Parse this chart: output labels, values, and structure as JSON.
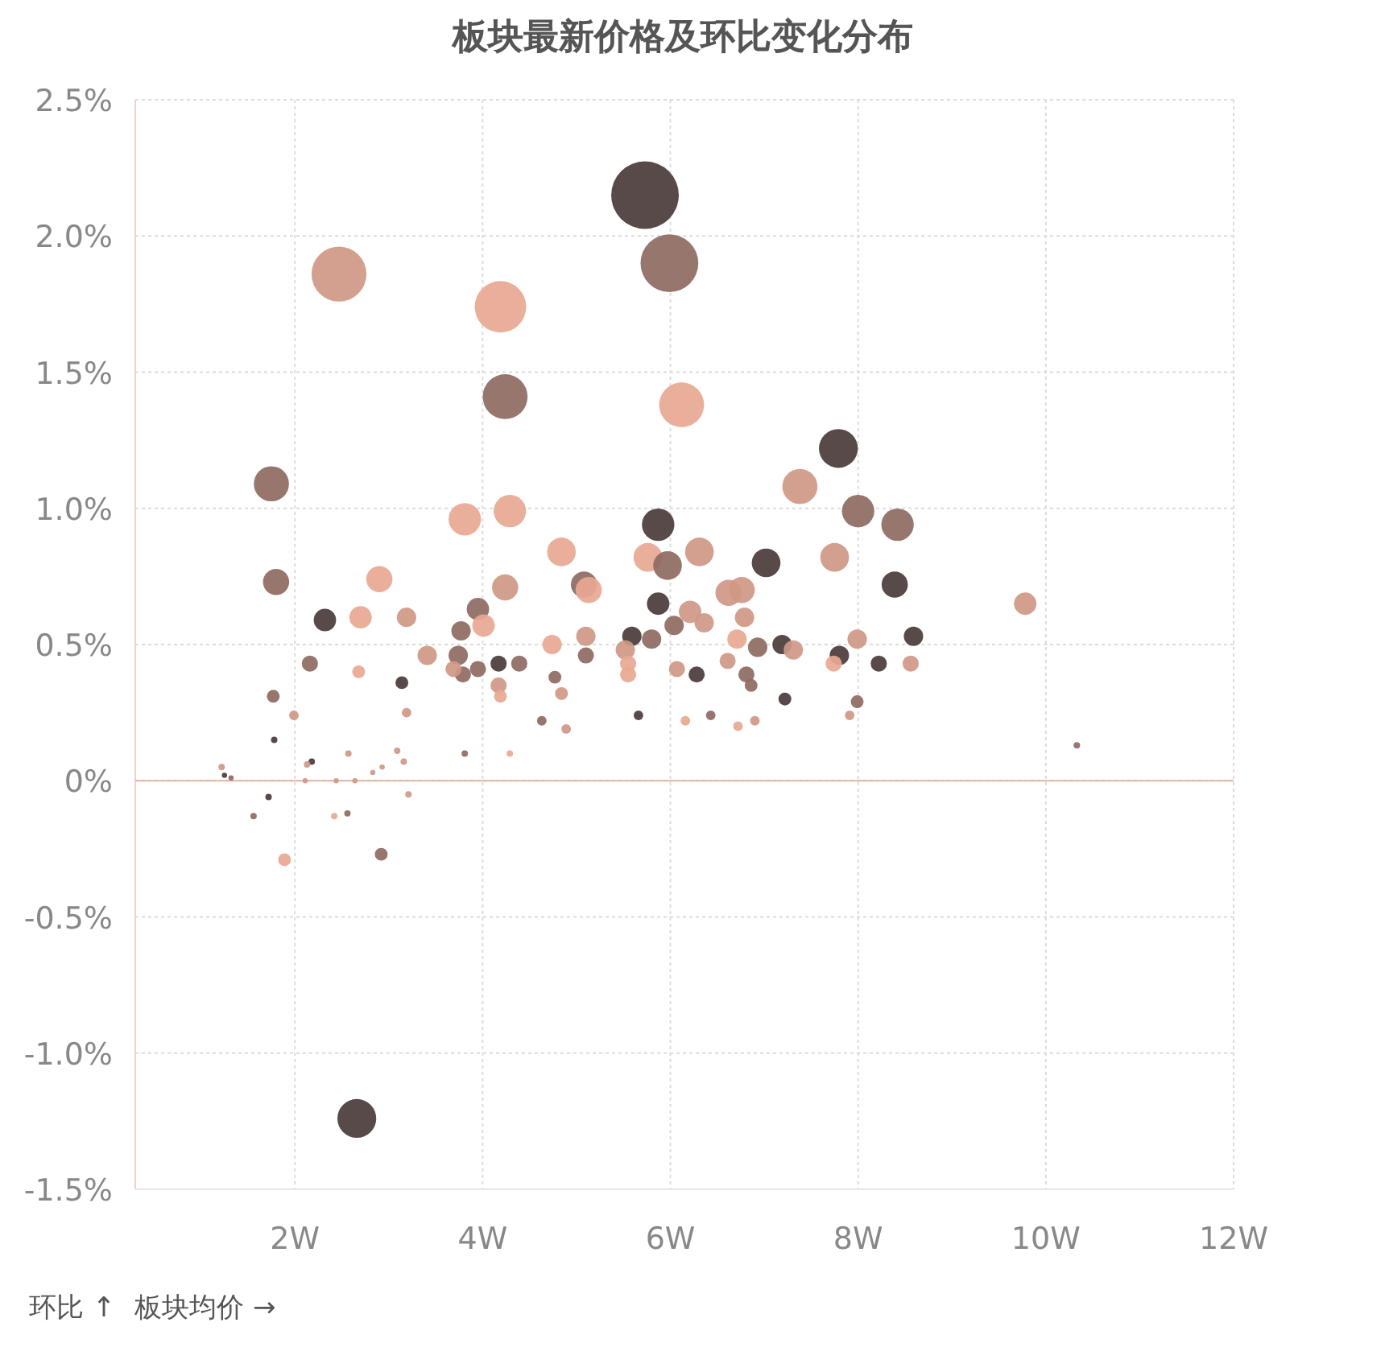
{
  "chart_data": {
    "type": "bubble",
    "title": "板块最新价格及环比变化分布",
    "xlabel": "板块均价 →",
    "ylabel": "环比 ↑",
    "xlim": [
      0.3,
      12
    ],
    "ylim": [
      -1.5,
      2.5
    ],
    "xticks": [
      {
        "value": 2,
        "label": "2W"
      },
      {
        "value": 4,
        "label": "4W"
      },
      {
        "value": 6,
        "label": "6W"
      },
      {
        "value": 8,
        "label": "8W"
      },
      {
        "value": 10,
        "label": "10W"
      },
      {
        "value": 12,
        "label": "12W"
      }
    ],
    "yticks": [
      {
        "value": -1.5,
        "label": "-1.5%"
      },
      {
        "value": -1,
        "label": "-1.0%"
      },
      {
        "value": -0.5,
        "label": "-0.5%"
      },
      {
        "value": 0,
        "label": "0%"
      },
      {
        "value": 0.5,
        "label": "0.5%"
      },
      {
        "value": 1,
        "label": "1.0%"
      },
      {
        "value": 1.5,
        "label": "1.5%"
      },
      {
        "value": 2,
        "label": "2.0%"
      },
      {
        "value": 2.5,
        "label": "2.5%"
      }
    ],
    "grid": true,
    "ref_lines": [
      {
        "axis": "y",
        "value": 0,
        "color": "#e8b4a6"
      }
    ],
    "x": [
      5.73,
      5.99,
      2.47,
      4.19,
      4.24,
      6.12,
      1.75,
      7.79,
      7.38,
      8.0,
      8.42,
      4.29,
      3.81,
      5.87,
      5.76,
      5.97,
      6.31,
      4.84,
      7.02,
      7.75,
      1.8,
      2.9,
      4.24,
      5.08,
      5.13,
      5.87,
      6.76,
      6.62,
      8.39,
      9.78,
      2.32,
      2.7,
      3.95,
      4.01,
      3.77,
      3.19,
      6.21,
      6.36,
      6.04,
      6.79,
      6.71,
      5.59,
      5.8,
      4.74,
      5.1,
      5.52,
      6.93,
      7.19,
      7.31,
      7.8,
      7.99,
      8.59,
      8.56,
      8.22,
      7.74,
      3.41,
      3.74,
      3.79,
      3.69,
      3.95,
      4.17,
      4.39,
      4.17,
      4.19,
      4.77,
      4.84,
      5.1,
      5.55,
      5.55,
      6.07,
      6.28,
      6.61,
      6.81,
      6.86,
      2.16,
      2.68,
      3.14,
      1.77,
      1.99,
      3.19,
      1.78,
      2.18,
      2.13,
      5.66,
      6.16,
      6.43,
      6.72,
      6.9,
      7.22,
      7.91,
      7.99,
      4.63,
      4.89,
      3.81,
      4.29,
      3.09,
      2.57,
      10.33,
      1.22,
      1.25,
      1.32,
      1.56,
      1.72,
      1.89,
      2.42,
      2.56,
      2.92,
      3.21,
      2.83,
      2.93,
      2.64,
      2.44,
      2.66,
      3.16,
      2.11
    ],
    "values": [
      2.15,
      1.9,
      1.86,
      1.74,
      1.41,
      1.38,
      1.09,
      1.22,
      1.08,
      0.99,
      0.94,
      0.99,
      0.96,
      0.94,
      0.82,
      0.79,
      0.84,
      0.84,
      0.8,
      0.82,
      0.73,
      0.74,
      0.71,
      0.72,
      0.7,
      0.65,
      0.7,
      0.69,
      0.72,
      0.65,
      0.59,
      0.6,
      0.63,
      0.57,
      0.55,
      0.6,
      0.62,
      0.58,
      0.57,
      0.6,
      0.52,
      0.53,
      0.52,
      0.5,
      0.53,
      0.48,
      0.49,
      0.5,
      0.48,
      0.46,
      0.52,
      0.53,
      0.43,
      0.43,
      0.43,
      0.46,
      0.46,
      0.39,
      0.41,
      0.41,
      0.43,
      0.43,
      0.35,
      0.31,
      0.38,
      0.32,
      0.46,
      0.43,
      0.39,
      0.41,
      0.39,
      0.44,
      0.39,
      0.35,
      0.43,
      0.4,
      0.36,
      0.31,
      0.24,
      0.25,
      0.15,
      0.07,
      0.06,
      0.24,
      0.22,
      0.24,
      0.2,
      0.22,
      0.3,
      0.24,
      0.29,
      0.22,
      0.19,
      0.1,
      0.1,
      0.11,
      0.1,
      0.13,
      0.05,
      0.02,
      0.01,
      -0.13,
      -0.06,
      -0.29,
      -0.13,
      -0.12,
      -0.27,
      -0.05,
      0.03,
      0.05,
      0.0,
      0.0,
      -1.24,
      0.07,
      0.0
    ],
    "sizes": [
      1,
      0.73,
      0.66,
      0.58,
      0.44,
      0.44,
      0.27,
      0.33,
      0.27,
      0.23,
      0.23,
      0.23,
      0.23,
      0.23,
      0.18,
      0.18,
      0.18,
      0.18,
      0.18,
      0.18,
      0.15,
      0.15,
      0.15,
      0.15,
      0.15,
      0.11,
      0.15,
      0.15,
      0.15,
      0.11,
      0.11,
      0.11,
      0.11,
      0.11,
      0.082,
      0.082,
      0.11,
      0.082,
      0.082,
      0.082,
      0.082,
      0.082,
      0.082,
      0.082,
      0.082,
      0.082,
      0.082,
      0.082,
      0.082,
      0.082,
      0.082,
      0.082,
      0.057,
      0.057,
      0.057,
      0.082,
      0.082,
      0.057,
      0.057,
      0.057,
      0.057,
      0.057,
      0.057,
      0.036,
      0.036,
      0.036,
      0.057,
      0.057,
      0.057,
      0.057,
      0.057,
      0.057,
      0.057,
      0.036,
      0.057,
      0.036,
      0.036,
      0.036,
      0.02,
      0.02,
      0.009,
      0.009,
      0.009,
      0.02,
      0.02,
      0.02,
      0.02,
      0.02,
      0.036,
      0.02,
      0.036,
      0.02,
      0.02,
      0.009,
      0.009,
      0.009,
      0.009,
      0.009,
      0.009,
      0.006,
      0.006,
      0.009,
      0.009,
      0.036,
      0.009,
      0.009,
      0.036,
      0.009,
      0.006,
      0.006,
      0.006,
      0.006,
      0.33,
      0.009,
      0.006
    ],
    "colors": [
      "#4a3b39",
      "#8e6a62",
      "#cf9886",
      "#e8a892",
      "#8e6a62",
      "#e8a892",
      "#8e6a62",
      "#4a3b39",
      "#cf9886",
      "#8e6a62",
      "#8e6a62",
      "#e8a892",
      "#e8a892",
      "#4a3b39",
      "#e8a892",
      "#8e6a62",
      "#cf9886",
      "#e8a892",
      "#4a3b39",
      "#cf9886",
      "#8e6a62",
      "#e8a892",
      "#cf9886",
      "#8e6a62",
      "#e8a892",
      "#4a3b39",
      "#cf9886",
      "#cf9886",
      "#4a3b39",
      "#cf9886",
      "#4a3b39",
      "#e8a892",
      "#8e6a62",
      "#e8a892",
      "#8e6a62",
      "#cf9886",
      "#cf9886",
      "#cf9886",
      "#8e6a62",
      "#cf9886",
      "#e8a892",
      "#4a3b39",
      "#8e6a62",
      "#e8a892",
      "#cf9886",
      "#cf9886",
      "#8e6a62",
      "#4a3b39",
      "#cf9886",
      "#4a3b39",
      "#cf9886",
      "#4a3b39",
      "#cf9886",
      "#4a3b39",
      "#e8a892",
      "#cf9886",
      "#8e6a62",
      "#8e6a62",
      "#cf9886",
      "#8e6a62",
      "#4a3b39",
      "#8e6a62",
      "#cf9886",
      "#e8a892",
      "#8e6a62",
      "#cf9886",
      "#8e6a62",
      "#e8a892",
      "#e8a892",
      "#cf9886",
      "#4a3b39",
      "#cf9886",
      "#8e6a62",
      "#8e6a62",
      "#8e6a62",
      "#e8a892",
      "#4a3b39",
      "#8e6a62",
      "#cf9886",
      "#cf9886",
      "#4a3b39",
      "#4a3b39",
      "#cf9886",
      "#4a3b39",
      "#e8a892",
      "#8e6a62",
      "#e8a892",
      "#cf9886",
      "#4a3b39",
      "#cf9886",
      "#8e6a62",
      "#8e6a62",
      "#cf9886",
      "#8e6a62",
      "#e8a892",
      "#cf9886",
      "#cf9886",
      "#8e6a62",
      "#cf9886",
      "#4a3b39",
      "#8e6a62",
      "#8e6a62",
      "#4a3b39",
      "#e8a892",
      "#e8a892",
      "#8e6a62",
      "#8e6a62",
      "#cf9886",
      "#cf9886",
      "#cf9886",
      "#cf9886",
      "#cf9886",
      "#4a3b39",
      "#cf9886",
      "#cf9886"
    ]
  }
}
